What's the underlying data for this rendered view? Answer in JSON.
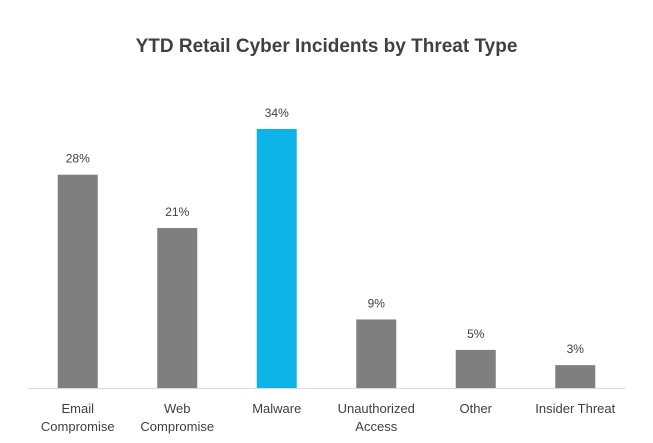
{
  "chart_data": {
    "type": "bar",
    "title": "YTD Retail Cyber Incidents by Threat Type",
    "xlabel": "",
    "ylabel": "",
    "categories": [
      [
        "Email",
        "Compromise"
      ],
      [
        "Web",
        "Compromise"
      ],
      [
        "Malware"
      ],
      [
        "Unauthorized",
        "Access"
      ],
      [
        "Other"
      ],
      [
        "Insider Threat"
      ]
    ],
    "values": [
      28,
      21,
      34,
      9,
      5,
      3
    ],
    "data_labels": [
      "28%",
      "21%",
      "34%",
      "9%",
      "5%",
      "3%"
    ],
    "ylim": [
      0,
      40
    ],
    "grid": false,
    "legend": "none",
    "colors": {
      "default": "#7f7f7f",
      "highlight": "#0cb3e6",
      "axis": "#d9d9d9",
      "text": "#404040"
    },
    "highlight_index": 2
  }
}
